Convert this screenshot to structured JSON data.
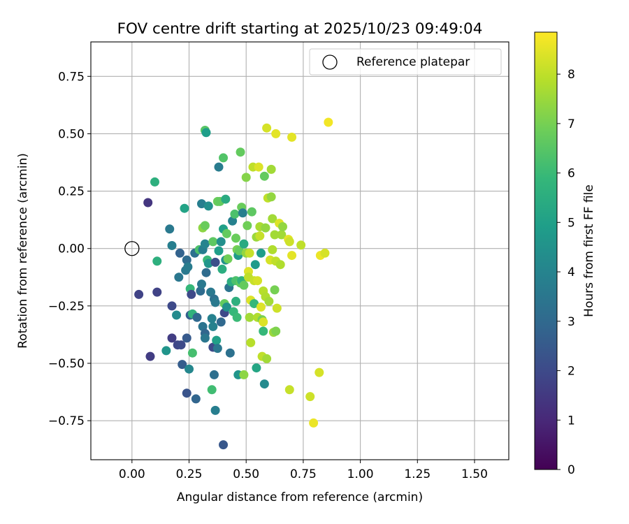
{
  "chart_data": {
    "type": "scatter",
    "title": "FOV centre drift starting at 2025/10/23 09:49:04",
    "xlabel": "Angular distance from reference (arcmin)",
    "ylabel": "Rotation from reference (arcmin)",
    "xlim": [
      -0.18,
      1.65
    ],
    "ylim": [
      -0.92,
      0.9
    ],
    "xticks": [
      0.0,
      0.25,
      0.5,
      0.75,
      1.0,
      1.25,
      1.5
    ],
    "xtick_labels": [
      "0.00",
      "0.25",
      "0.50",
      "0.75",
      "1.00",
      "1.25",
      "1.50"
    ],
    "yticks": [
      -0.75,
      -0.5,
      -0.25,
      0.0,
      0.25,
      0.5,
      0.75
    ],
    "ytick_labels": [
      "−0.75",
      "−0.50",
      "−0.25",
      "0.00",
      "0.25",
      "0.50",
      "0.75"
    ],
    "grid": true,
    "legend": {
      "label": "Reference platepar",
      "position": "top-right"
    },
    "reference_point": {
      "x": 0.0,
      "y": 0.0
    },
    "colorbar": {
      "label": "Hours from first FF file",
      "colormap": "viridis",
      "range": [
        0,
        8.85
      ],
      "ticks": [
        0,
        1,
        2,
        3,
        4,
        5,
        6,
        7,
        8
      ],
      "tick_labels": [
        "0",
        "1",
        "2",
        "3",
        "4",
        "5",
        "6",
        "7",
        "8"
      ]
    },
    "colormap_stops": [
      "#440154",
      "#482878",
      "#3e4989",
      "#31688e",
      "#26828e",
      "#1f9e89",
      "#35b779",
      "#6ece58",
      "#b5de2b",
      "#fde725"
    ],
    "points": [
      {
        "x": 0.07,
        "y": 0.2,
        "h": 1.4
      },
      {
        "x": 0.1,
        "y": 0.29,
        "h": 5.6
      },
      {
        "x": 0.03,
        "y": -0.2,
        "h": 1.8
      },
      {
        "x": 0.11,
        "y": -0.19,
        "h": 1.8
      },
      {
        "x": 0.08,
        "y": -0.47,
        "h": 1.6
      },
      {
        "x": 0.11,
        "y": -0.055,
        "h": 5.6
      },
      {
        "x": 0.165,
        "y": 0.085,
        "h": 3.6
      },
      {
        "x": 0.175,
        "y": 0.013,
        "h": 3.8
      },
      {
        "x": 0.175,
        "y": -0.25,
        "h": 2.0
      },
      {
        "x": 0.175,
        "y": -0.39,
        "h": 1.6
      },
      {
        "x": 0.2,
        "y": -0.42,
        "h": 1.9
      },
      {
        "x": 0.15,
        "y": -0.445,
        "h": 4.6
      },
      {
        "x": 0.195,
        "y": -0.29,
        "h": 4.2
      },
      {
        "x": 0.205,
        "y": -0.125,
        "h": 3.5
      },
      {
        "x": 0.21,
        "y": -0.02,
        "h": 2.8
      },
      {
        "x": 0.215,
        "y": -0.42,
        "h": 2.0
      },
      {
        "x": 0.22,
        "y": -0.505,
        "h": 2.6
      },
      {
        "x": 0.23,
        "y": 0.175,
        "h": 5.1
      },
      {
        "x": 0.235,
        "y": -0.095,
        "h": 3.6
      },
      {
        "x": 0.24,
        "y": -0.39,
        "h": 2.5
      },
      {
        "x": 0.24,
        "y": -0.63,
        "h": 2.3
      },
      {
        "x": 0.24,
        "y": -0.05,
        "h": 3.1
      },
      {
        "x": 0.245,
        "y": -0.08,
        "h": 3.7
      },
      {
        "x": 0.25,
        "y": -0.525,
        "h": 4.1
      },
      {
        "x": 0.255,
        "y": -0.175,
        "h": 5.9
      },
      {
        "x": 0.255,
        "y": -0.29,
        "h": 2.7
      },
      {
        "x": 0.26,
        "y": -0.2,
        "h": 2.0
      },
      {
        "x": 0.265,
        "y": -0.285,
        "h": 5.7
      },
      {
        "x": 0.265,
        "y": -0.455,
        "h": 6.2
      },
      {
        "x": 0.28,
        "y": -0.655,
        "h": 2.9
      },
      {
        "x": 0.275,
        "y": -0.02,
        "h": 3.3
      },
      {
        "x": 0.285,
        "y": -0.3,
        "h": 3.0
      },
      {
        "x": 0.295,
        "y": -0.005,
        "h": 6.3
      },
      {
        "x": 0.3,
        "y": -0.185,
        "h": 3.1
      },
      {
        "x": 0.305,
        "y": -0.155,
        "h": 3.6
      },
      {
        "x": 0.31,
        "y": -0.005,
        "h": 3.8
      },
      {
        "x": 0.305,
        "y": 0.195,
        "h": 3.8
      },
      {
        "x": 0.31,
        "y": 0.09,
        "h": 7.3
      },
      {
        "x": 0.31,
        "y": -0.34,
        "h": 3.4
      },
      {
        "x": 0.32,
        "y": 0.1,
        "h": 6.8
      },
      {
        "x": 0.32,
        "y": 0.515,
        "h": 6.5
      },
      {
        "x": 0.325,
        "y": 0.505,
        "h": 4.9
      },
      {
        "x": 0.32,
        "y": 0.02,
        "h": 4.0
      },
      {
        "x": 0.32,
        "y": -0.37,
        "h": 2.9
      },
      {
        "x": 0.32,
        "y": -0.39,
        "h": 3.5
      },
      {
        "x": 0.325,
        "y": -0.105,
        "h": 3.1
      },
      {
        "x": 0.33,
        "y": -0.05,
        "h": 6.0
      },
      {
        "x": 0.335,
        "y": -0.065,
        "h": 4.6
      },
      {
        "x": 0.335,
        "y": 0.185,
        "h": 4.4
      },
      {
        "x": 0.345,
        "y": -0.19,
        "h": 3.6
      },
      {
        "x": 0.35,
        "y": -0.305,
        "h": 3.9
      },
      {
        "x": 0.35,
        "y": -0.615,
        "h": 6.1
      },
      {
        "x": 0.355,
        "y": -0.43,
        "h": 2.0
      },
      {
        "x": 0.355,
        "y": 0.03,
        "h": 6.6
      },
      {
        "x": 0.355,
        "y": -0.34,
        "h": 3.9
      },
      {
        "x": 0.36,
        "y": -0.22,
        "h": 3.3
      },
      {
        "x": 0.36,
        "y": -0.55,
        "h": 3.2
      },
      {
        "x": 0.365,
        "y": -0.235,
        "h": 3.6
      },
      {
        "x": 0.365,
        "y": -0.06,
        "h": 2.2
      },
      {
        "x": 0.365,
        "y": -0.705,
        "h": 3.8
      },
      {
        "x": 0.37,
        "y": -0.4,
        "h": 5.0
      },
      {
        "x": 0.375,
        "y": 0.205,
        "h": 6.8
      },
      {
        "x": 0.375,
        "y": -0.435,
        "h": 3.5
      },
      {
        "x": 0.38,
        "y": 0.355,
        "h": 3.7
      },
      {
        "x": 0.38,
        "y": -0.01,
        "h": 4.9
      },
      {
        "x": 0.385,
        "y": 0.205,
        "h": 6.7
      },
      {
        "x": 0.39,
        "y": 0.03,
        "h": 4.4
      },
      {
        "x": 0.39,
        "y": -0.32,
        "h": 3.0
      },
      {
        "x": 0.395,
        "y": -0.09,
        "h": 5.5
      },
      {
        "x": 0.4,
        "y": -0.855,
        "h": 2.4
      },
      {
        "x": 0.4,
        "y": 0.395,
        "h": 6.4
      },
      {
        "x": 0.4,
        "y": 0.085,
        "h": 5.0
      },
      {
        "x": 0.405,
        "y": -0.28,
        "h": 2.0
      },
      {
        "x": 0.405,
        "y": -0.24,
        "h": 6.7
      },
      {
        "x": 0.41,
        "y": 0.215,
        "h": 5.4
      },
      {
        "x": 0.41,
        "y": -0.05,
        "h": 4.5
      },
      {
        "x": 0.415,
        "y": 0.065,
        "h": 6.7
      },
      {
        "x": 0.415,
        "y": -0.255,
        "h": 4.5
      },
      {
        "x": 0.42,
        "y": -0.045,
        "h": 6.9
      },
      {
        "x": 0.425,
        "y": -0.17,
        "h": 3.4
      },
      {
        "x": 0.43,
        "y": -0.455,
        "h": 3.3
      },
      {
        "x": 0.435,
        "y": -0.145,
        "h": 5.5
      },
      {
        "x": 0.44,
        "y": 0.12,
        "h": 3.9
      },
      {
        "x": 0.445,
        "y": -0.275,
        "h": 5.9
      },
      {
        "x": 0.45,
        "y": 0.15,
        "h": 6.3
      },
      {
        "x": 0.455,
        "y": -0.14,
        "h": 6.3
      },
      {
        "x": 0.455,
        "y": -0.23,
        "h": 5.6
      },
      {
        "x": 0.455,
        "y": 0.045,
        "h": 6.8
      },
      {
        "x": 0.46,
        "y": -0.005,
        "h": 7.0
      },
      {
        "x": 0.46,
        "y": -0.3,
        "h": 6.0
      },
      {
        "x": 0.465,
        "y": -0.03,
        "h": 4.8
      },
      {
        "x": 0.465,
        "y": -0.55,
        "h": 4.6
      },
      {
        "x": 0.47,
        "y": -0.01,
        "h": 6.7
      },
      {
        "x": 0.475,
        "y": 0.42,
        "h": 6.7
      },
      {
        "x": 0.475,
        "y": -0.15,
        "h": 6.7
      },
      {
        "x": 0.48,
        "y": -0.14,
        "h": 5.7
      },
      {
        "x": 0.48,
        "y": 0.18,
        "h": 6.8
      },
      {
        "x": 0.485,
        "y": 0.155,
        "h": 3.8
      },
      {
        "x": 0.49,
        "y": 0.02,
        "h": 5.4
      },
      {
        "x": 0.49,
        "y": -0.16,
        "h": 6.7
      },
      {
        "x": 0.49,
        "y": -0.55,
        "h": 7.3
      },
      {
        "x": 0.5,
        "y": -0.02,
        "h": 7.4
      },
      {
        "x": 0.5,
        "y": 0.31,
        "h": 7.2
      },
      {
        "x": 0.505,
        "y": 0.1,
        "h": 6.9
      },
      {
        "x": 0.51,
        "y": -0.1,
        "h": 8.4
      },
      {
        "x": 0.51,
        "y": -0.125,
        "h": 8.0
      },
      {
        "x": 0.515,
        "y": -0.02,
        "h": 8.1
      },
      {
        "x": 0.515,
        "y": -0.3,
        "h": 7.6
      },
      {
        "x": 0.52,
        "y": -0.225,
        "h": 8.4
      },
      {
        "x": 0.52,
        "y": -0.41,
        "h": 7.9
      },
      {
        "x": 0.525,
        "y": 0.16,
        "h": 6.6
      },
      {
        "x": 0.53,
        "y": 0.355,
        "h": 8.0
      },
      {
        "x": 0.535,
        "y": -0.24,
        "h": 5.9
      },
      {
        "x": 0.535,
        "y": -0.14,
        "h": 8.1
      },
      {
        "x": 0.54,
        "y": -0.07,
        "h": 4.8
      },
      {
        "x": 0.545,
        "y": -0.52,
        "h": 5.2
      },
      {
        "x": 0.545,
        "y": 0.05,
        "h": 7.5
      },
      {
        "x": 0.55,
        "y": -0.3,
        "h": 7.8
      },
      {
        "x": 0.55,
        "y": -0.14,
        "h": 8.3
      },
      {
        "x": 0.555,
        "y": 0.355,
        "h": 8.4
      },
      {
        "x": 0.56,
        "y": 0.095,
        "h": 7.7
      },
      {
        "x": 0.56,
        "y": 0.055,
        "h": 8.1
      },
      {
        "x": 0.565,
        "y": -0.02,
        "h": 4.9
      },
      {
        "x": 0.565,
        "y": -0.255,
        "h": 8.4
      },
      {
        "x": 0.57,
        "y": -0.31,
        "h": 7.0
      },
      {
        "x": 0.57,
        "y": -0.47,
        "h": 8.0
      },
      {
        "x": 0.575,
        "y": -0.36,
        "h": 5.9
      },
      {
        "x": 0.575,
        "y": -0.185,
        "h": 7.9
      },
      {
        "x": 0.575,
        "y": -0.32,
        "h": 8.4
      },
      {
        "x": 0.58,
        "y": 0.315,
        "h": 6.7
      },
      {
        "x": 0.58,
        "y": -0.59,
        "h": 4.2
      },
      {
        "x": 0.585,
        "y": 0.09,
        "h": 7.4
      },
      {
        "x": 0.585,
        "y": -0.21,
        "h": 7.8
      },
      {
        "x": 0.59,
        "y": 0.525,
        "h": 8.3
      },
      {
        "x": 0.59,
        "y": -0.48,
        "h": 7.6
      },
      {
        "x": 0.595,
        "y": 0.22,
        "h": 8.0
      },
      {
        "x": 0.6,
        "y": -0.23,
        "h": 7.6
      },
      {
        "x": 0.605,
        "y": -0.05,
        "h": 8.3
      },
      {
        "x": 0.61,
        "y": 0.225,
        "h": 7.4
      },
      {
        "x": 0.61,
        "y": 0.345,
        "h": 7.6
      },
      {
        "x": 0.615,
        "y": -0.005,
        "h": 7.8
      },
      {
        "x": 0.615,
        "y": 0.13,
        "h": 7.6
      },
      {
        "x": 0.62,
        "y": -0.365,
        "h": 7.5
      },
      {
        "x": 0.625,
        "y": -0.18,
        "h": 7.0
      },
      {
        "x": 0.625,
        "y": 0.06,
        "h": 7.6
      },
      {
        "x": 0.63,
        "y": 0.5,
        "h": 8.5
      },
      {
        "x": 0.63,
        "y": -0.055,
        "h": 8.0
      },
      {
        "x": 0.63,
        "y": -0.36,
        "h": 7.1
      },
      {
        "x": 0.635,
        "y": -0.26,
        "h": 8.2
      },
      {
        "x": 0.645,
        "y": 0.11,
        "h": 8.4
      },
      {
        "x": 0.65,
        "y": -0.07,
        "h": 7.8
      },
      {
        "x": 0.655,
        "y": 0.06,
        "h": 7.6
      },
      {
        "x": 0.66,
        "y": 0.095,
        "h": 7.4
      },
      {
        "x": 0.685,
        "y": 0.04,
        "h": 8.5
      },
      {
        "x": 0.69,
        "y": 0.03,
        "h": 8.2
      },
      {
        "x": 0.69,
        "y": -0.615,
        "h": 8.1
      },
      {
        "x": 0.7,
        "y": 0.485,
        "h": 8.5
      },
      {
        "x": 0.7,
        "y": -0.03,
        "h": 8.5
      },
      {
        "x": 0.74,
        "y": 0.015,
        "h": 8.0
      },
      {
        "x": 0.78,
        "y": -0.645,
        "h": 8.2
      },
      {
        "x": 0.795,
        "y": -0.76,
        "h": 8.6
      },
      {
        "x": 0.82,
        "y": -0.54,
        "h": 8.3
      },
      {
        "x": 0.825,
        "y": -0.03,
        "h": 8.6
      },
      {
        "x": 0.845,
        "y": -0.02,
        "h": 8.3
      },
      {
        "x": 0.86,
        "y": 0.55,
        "h": 8.7
      }
    ]
  }
}
